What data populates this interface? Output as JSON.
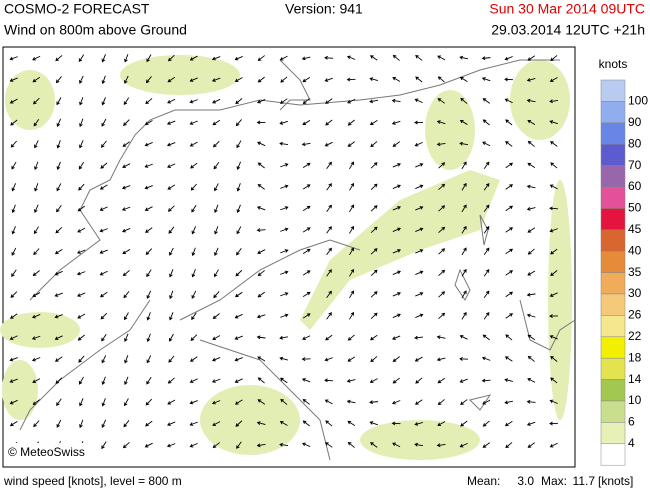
{
  "header": {
    "model": "COSMO-2 FORECAST",
    "field": "Wind on 800m above Ground",
    "version": "Version: 941",
    "valid_time": "Sun 30 Mar 2014 09UTC",
    "run_time": "29.03.2014 12UTC +21h"
  },
  "map": {
    "copyright": "© MeteoSwiss"
  },
  "legend": {
    "unit": "knots",
    "levels": [
      100,
      90,
      80,
      70,
      60,
      50,
      45,
      40,
      35,
      30,
      26,
      22,
      18,
      14,
      10,
      6,
      4
    ],
    "colors": [
      "#b8ccf2",
      "#90adf0",
      "#6886e6",
      "#5c5cd0",
      "#9866aa",
      "#e4519b",
      "#e5143e",
      "#d9652f",
      "#e68b39",
      "#f0ab5b",
      "#f6c97a",
      "#f5e78e",
      "#f3ef00",
      "#e2e34f",
      "#a3c852",
      "#c9df8e",
      "#e7f0b6",
      "#ffffff"
    ]
  },
  "footer": {
    "description": "wind speed [knots], level = 800 m",
    "mean_label": "Mean:",
    "mean": "3.0",
    "max_label": "Max:",
    "max": "11.7",
    "unit": "[knots]"
  }
}
